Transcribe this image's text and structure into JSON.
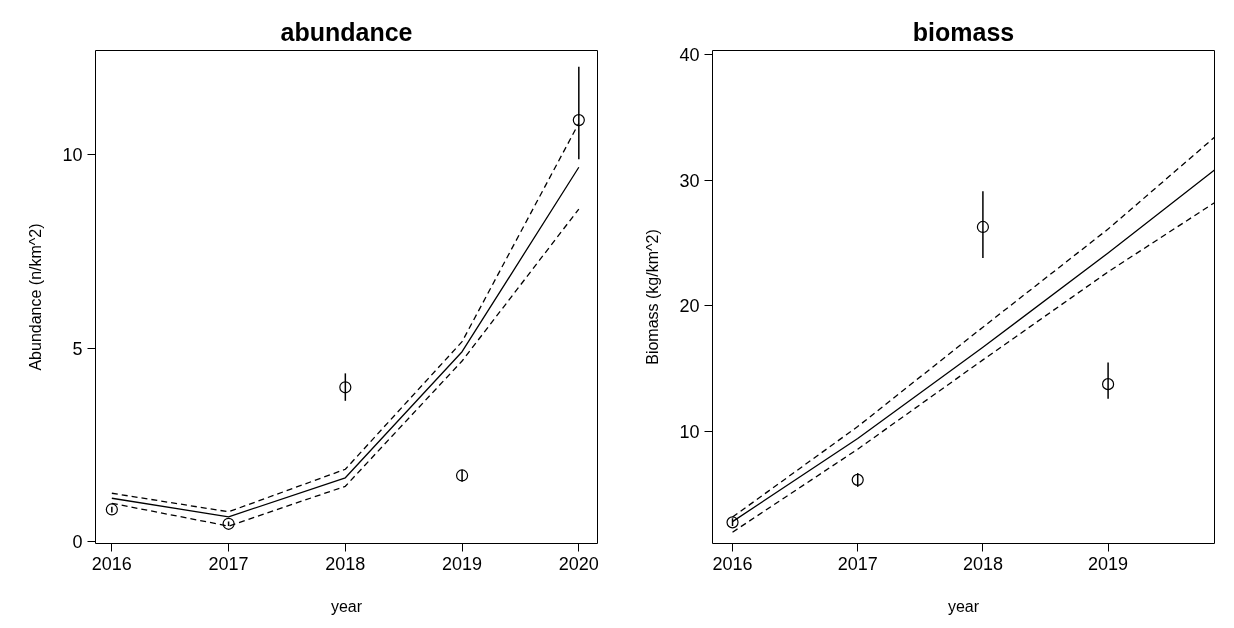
{
  "chart_data": [
    {
      "type": "scatter",
      "title": "abundance",
      "xlabel": "year",
      "ylabel": "Abundance (n/km^2)",
      "xlim": [
        2015.86,
        2020.16
      ],
      "ylim": [
        -0.05,
        12.7
      ],
      "xticks": [
        2016,
        2017,
        2018,
        2019,
        2020
      ],
      "yticks": [
        0,
        5,
        10
      ],
      "grid": false,
      "series": [
        {
          "marker": "circle",
          "color": "#000000",
          "x": [
            2016,
            2017,
            2018,
            2019,
            2020
          ],
          "values": [
            0.83,
            0.46,
            3.99,
            1.71,
            10.9
          ],
          "errors": [
            [
              0.75,
              0.9
            ],
            [
              0.4,
              0.52
            ],
            [
              3.64,
              4.35
            ],
            [
              1.55,
              1.86
            ],
            [
              9.89,
              12.28
            ]
          ]
        },
        {
          "type": "line",
          "line_style": "solid",
          "color": "#000000",
          "x": [
            2016,
            2017,
            2018,
            2019,
            2020
          ],
          "values": [
            1.12,
            0.64,
            1.65,
            4.91,
            9.68
          ]
        },
        {
          "type": "line",
          "line_style": "dashed",
          "color": "#000000",
          "x": [
            2016,
            2017,
            2018,
            2019,
            2020
          ],
          "values": [
            1.25,
            0.77,
            1.87,
            5.17,
            10.82
          ]
        },
        {
          "type": "line",
          "line_style": "dashed",
          "color": "#000000",
          "x": [
            2016,
            2017,
            2018,
            2019,
            2020
          ],
          "values": [
            0.99,
            0.4,
            1.43,
            4.67,
            8.6
          ]
        }
      ]
    },
    {
      "type": "scatter",
      "title": "biomass",
      "xlabel": "year",
      "ylabel": "Biomass (kg/km^2)",
      "xlim": [
        2015.84,
        2019.85
      ],
      "ylim": [
        1.1,
        40.3
      ],
      "xticks": [
        2016,
        2017,
        2018,
        2019
      ],
      "yticks": [
        10,
        20,
        30,
        40
      ],
      "grid": false,
      "series": [
        {
          "marker": "circle",
          "color": "#000000",
          "x": [
            2016,
            2017,
            2018,
            2019
          ],
          "values": [
            2.78,
            6.16,
            26.27,
            13.77
          ],
          "errors": [
            [
              2.5,
              3.1
            ],
            [
              5.6,
              6.7
            ],
            [
              23.8,
              29.1
            ],
            [
              12.6,
              15.5
            ]
          ]
        },
        {
          "type": "line",
          "line_style": "solid",
          "color": "#000000",
          "x": [
            2016,
            2017,
            2018,
            2019,
            2019.85
          ],
          "values": [
            2.84,
            9.45,
            16.7,
            24.2,
            30.8
          ]
        },
        {
          "type": "line",
          "line_style": "dashed",
          "color": "#000000",
          "x": [
            2016,
            2017,
            2018,
            2019,
            2019.85
          ],
          "values": [
            3.2,
            10.4,
            18.3,
            26.1,
            33.4
          ]
        },
        {
          "type": "line",
          "line_style": "dashed",
          "color": "#000000",
          "x": [
            2016,
            2017,
            2018,
            2019,
            2019.85
          ],
          "values": [
            2.0,
            8.6,
            15.7,
            22.7,
            28.2
          ]
        }
      ]
    }
  ]
}
